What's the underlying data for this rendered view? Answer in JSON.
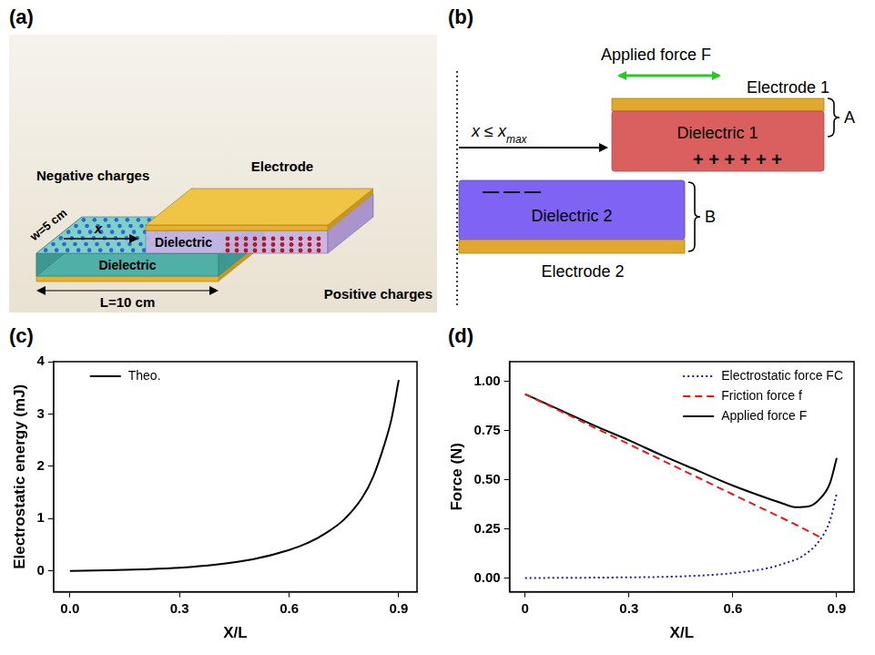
{
  "panel_letters": [
    "(a)",
    "(b)",
    "(c)",
    "(d)"
  ],
  "diagram_a": {
    "electrode": "Electrode",
    "negative_charges": "Negative charges",
    "positive_charges": "Positive charges",
    "dielectric_top": "Dielectric",
    "dielectric_bottom": "Dielectric",
    "x": "x",
    "width": "w=5 cm",
    "length": "L=10 cm"
  },
  "diagram_b": {
    "applied_force": "Applied force F",
    "electrode_1": "Electrode 1",
    "dielectric_1": "Dielectric 1",
    "dielectric_2": "Dielectric 2",
    "electrode_2": "Electrode 2",
    "displacement": {
      "text": "x ≤ x",
      "subscript": "max"
    },
    "brace_top": "A",
    "brace_bottom": "B",
    "charges_top": "+ + + + + +",
    "charges_bottom": "— — —"
  },
  "chart_data": [
    {
      "type": "line",
      "x_label": "X/L",
      "y_label": "Electrostatic energy (mJ)",
      "xlim": [
        -0.045,
        0.95
      ],
      "xticks": [
        {
          "value": 0,
          "label": "0.0"
        },
        0.3,
        0.6,
        0.9
      ],
      "ylim": [
        -0.4,
        4
      ],
      "yticks": [
        0,
        1,
        2,
        3,
        4
      ],
      "grid": false,
      "legend": "upper left",
      "series": [
        {
          "name": "Theo.",
          "color": "#000000",
          "line_style": "solid",
          "x": [
            0,
            0.1,
            0.2,
            0.3,
            0.4,
            0.5,
            0.6,
            0.65,
            0.7,
            0.75,
            0.8,
            0.83,
            0.86,
            0.88,
            0.9
          ],
          "values": [
            0,
            0.01,
            0.03,
            0.06,
            0.12,
            0.22,
            0.4,
            0.53,
            0.72,
            0.98,
            1.4,
            1.8,
            2.4,
            2.9,
            3.65
          ]
        }
      ]
    },
    {
      "type": "line",
      "x_label": "X/L",
      "y_label": "Force (N)",
      "xlim": [
        -0.045,
        0.95
      ],
      "xticks": [
        {
          "value": 0,
          "label": "0"
        },
        0.3,
        0.6,
        0.9
      ],
      "ylim": [
        -0.07,
        1.1
      ],
      "yticks": [
        {
          "value": 0,
          "label": "0.00"
        },
        0.25,
        {
          "value": 0.5,
          "label": "0.50"
        },
        0.75,
        {
          "value": 1,
          "label": "1.00"
        }
      ],
      "grid": false,
      "legend": "upper right",
      "series": [
        {
          "name": "Electrostatic force FC",
          "color": "#1a1aa6",
          "line_style": "dotted",
          "x": [
            0,
            0.2,
            0.4,
            0.5,
            0.6,
            0.7,
            0.75,
            0.8,
            0.85,
            0.88,
            0.9
          ],
          "values": [
            0,
            0.002,
            0.006,
            0.012,
            0.025,
            0.05,
            0.075,
            0.11,
            0.19,
            0.29,
            0.43
          ]
        },
        {
          "name": "Friction force f",
          "color": "#e31a1c",
          "line_style": "dashed",
          "x": [
            0,
            0.2,
            0.4,
            0.6,
            0.8,
            0.86
          ],
          "values": [
            0.935,
            0.765,
            0.595,
            0.425,
            0.255,
            0.2
          ]
        },
        {
          "name": "Applied force F",
          "color": "#000000",
          "line_style": "solid",
          "x": [
            0,
            0.1,
            0.2,
            0.3,
            0.4,
            0.5,
            0.6,
            0.7,
            0.75,
            0.78,
            0.82,
            0.85,
            0.88,
            0.9
          ],
          "values": [
            0.935,
            0.855,
            0.775,
            0.7,
            0.62,
            0.545,
            0.47,
            0.405,
            0.375,
            0.36,
            0.365,
            0.4,
            0.48,
            0.61
          ]
        }
      ]
    }
  ]
}
